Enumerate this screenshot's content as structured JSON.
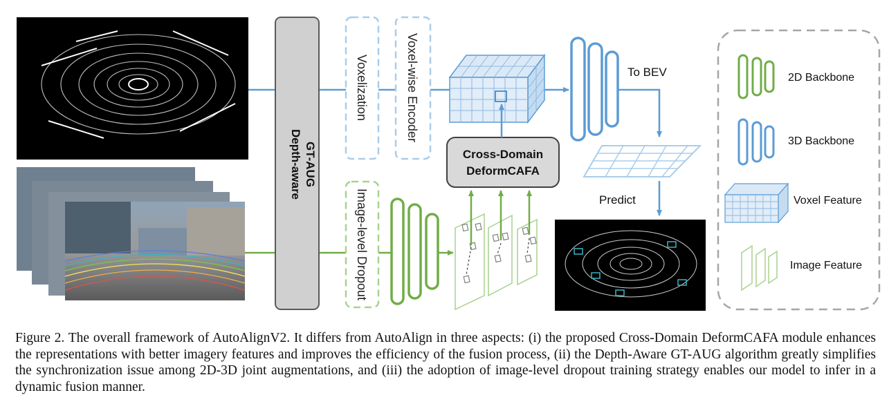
{
  "diagram": {
    "gt_aug_line1": "Depth-aware",
    "gt_aug_line2": "GT-AUG",
    "voxelization": "Voxelization",
    "voxel_encoder": "Voxel-wise Encoder",
    "image_dropout": "Image-level Dropout",
    "cross_domain_line1": "Cross-Domain",
    "cross_domain_line2": "DeformCAFA",
    "to_bev": "To BEV",
    "predict": "Predict"
  },
  "legend": {
    "items": [
      {
        "label": "2D Backbone",
        "icon": "2d-backbone-icon"
      },
      {
        "label": "3D Backbone",
        "icon": "3d-backbone-icon"
      },
      {
        "label": "Voxel Feature",
        "icon": "voxel-feature-icon"
      },
      {
        "label": "Image Feature",
        "icon": "image-feature-icon"
      }
    ]
  },
  "colors": {
    "blue": "#5b9bd5",
    "light_blue": "#a9cdea",
    "green": "#70ad47",
    "light_green": "#a9d18e",
    "gray_box": "#d9d9d9"
  },
  "caption": {
    "label": "Figure 2.",
    "text": "The overall framework of AutoAlignV2. It differs from AutoAlign in three aspects: (i) the proposed Cross-Domain DeformCAFA module enhances the representations with better imagery features and improves the efficiency of the fusion process, (ii) the Depth-Aware GT-AUG algorithm greatly simplifies the synchronization issue among 2D-3D joint augmentations, and (iii) the adoption of image-level dropout training strategy enables our model to infer in a dynamic fusion manner."
  }
}
